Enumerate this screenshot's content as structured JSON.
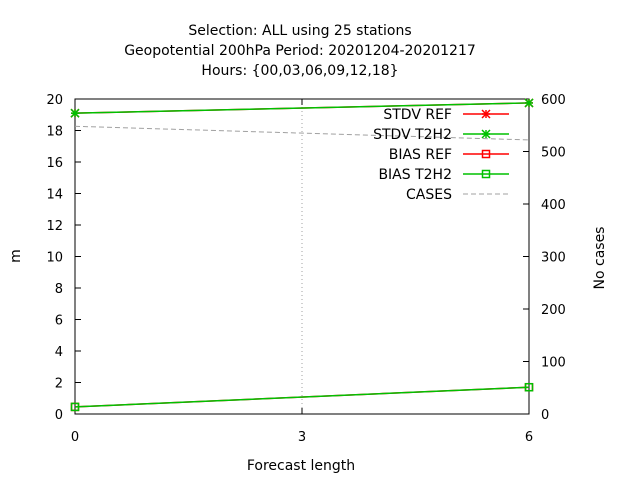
{
  "chart_data": {
    "type": "line",
    "title_lines": [
      "Selection: ALL using    25 stations",
      "Geopotential 200hPa   Period: 20201204-20201217",
      "Hours: {00,03,06,09,12,18}"
    ],
    "xlabel": "Forecast length",
    "ylabel": "m",
    "y2label": "No cases",
    "xlim": [
      0,
      6
    ],
    "ylim": [
      0,
      20
    ],
    "y2lim": [
      0,
      600
    ],
    "xticks": [
      0,
      3,
      6
    ],
    "yticks": [
      0,
      2,
      4,
      6,
      8,
      10,
      12,
      14,
      16,
      18,
      20
    ],
    "y2ticks": [
      0,
      100,
      200,
      300,
      400,
      500,
      600
    ],
    "grid": "vertical dotted at x=3",
    "legend_position": "top-right",
    "x": [
      0,
      6
    ],
    "series": [
      {
        "name": "STDV REF",
        "axis": "y",
        "color": "#ff0000",
        "marker": "x",
        "dash": "solid",
        "values": [
          19.1,
          19.75
        ]
      },
      {
        "name": "STDV T2H2",
        "axis": "y",
        "color": "#00c000",
        "marker": "x",
        "dash": "solid",
        "values": [
          19.1,
          19.75
        ]
      },
      {
        "name": "BIAS REF",
        "axis": "y",
        "color": "#ff0000",
        "marker": "square",
        "dash": "solid",
        "values": [
          0.45,
          1.7
        ]
      },
      {
        "name": "BIAS T2H2",
        "axis": "y",
        "color": "#00c000",
        "marker": "square",
        "dash": "solid",
        "values": [
          0.45,
          1.7
        ]
      },
      {
        "name": "CASES",
        "axis": "y2",
        "color": "#a0a0a0",
        "marker": "none",
        "dash": "dashed",
        "values": [
          548,
          522
        ]
      }
    ]
  }
}
